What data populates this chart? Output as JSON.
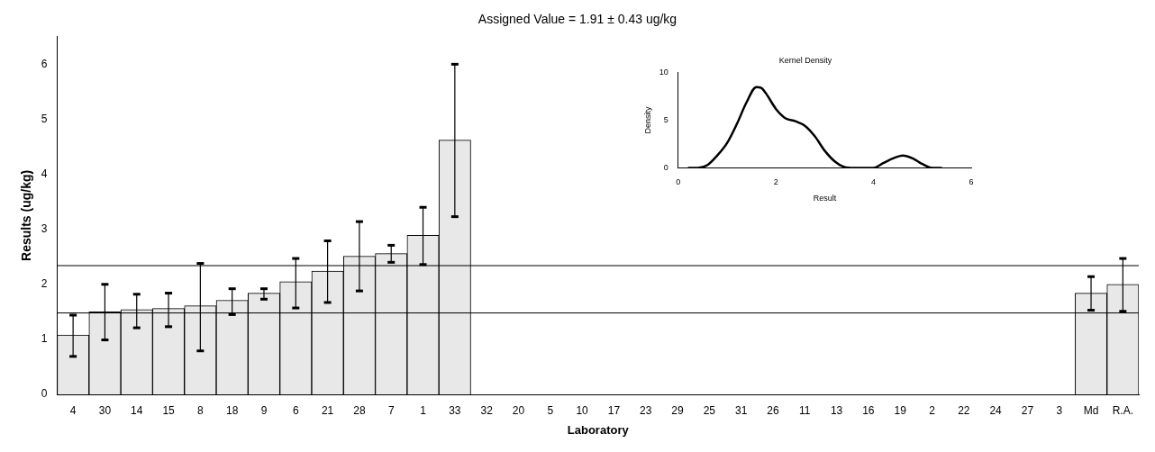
{
  "chart_data": [
    {
      "type": "bar",
      "title": "Assigned Value = 1.91 ± 0.43 ug/kg",
      "xlabel": "Laboratory",
      "ylabel": "Results (ug/kg)",
      "categories": [
        "4",
        "30",
        "14",
        "15",
        "8",
        "18",
        "9",
        "6",
        "21",
        "28",
        "7",
        "1",
        "33",
        "32",
        "20",
        "5",
        "10",
        "17",
        "23",
        "29",
        "25",
        "31",
        "26",
        "11",
        "13",
        "16",
        "19",
        "2",
        "22",
        "24",
        "27",
        "3",
        "Md",
        "R.A."
      ],
      "series": [
        {
          "color": "#e8e8e8",
          "values": [
            1.08,
            1.5,
            1.54,
            1.56,
            1.61,
            1.71,
            1.84,
            2.05,
            2.24,
            2.51,
            2.56,
            2.89,
            4.62,
            null,
            null,
            null,
            null,
            null,
            null,
            null,
            null,
            null,
            null,
            null,
            null,
            null,
            null,
            null,
            null,
            null,
            null,
            null,
            1.84,
            2.0
          ],
          "errors": [
            [
              0.69,
              1.44
            ],
            [
              0.99,
              2.0
            ],
            [
              1.21,
              1.82
            ],
            [
              1.23,
              1.84
            ],
            [
              0.79,
              2.38
            ],
            [
              1.45,
              1.92
            ],
            [
              1.73,
              1.92
            ],
            [
              1.57,
              2.47
            ],
            [
              1.67,
              2.79
            ],
            [
              1.88,
              3.14
            ],
            [
              2.4,
              2.71
            ],
            [
              2.36,
              3.4
            ],
            [
              3.23,
              6.0
            ],
            null,
            null,
            null,
            null,
            null,
            null,
            null,
            null,
            null,
            null,
            null,
            null,
            null,
            null,
            null,
            null,
            null,
            null,
            null,
            [
              1.53,
              2.14
            ],
            [
              1.51,
              2.47
            ]
          ]
        }
      ],
      "ylim": [
        0,
        6.5
      ],
      "yticks": [
        0,
        1,
        2,
        3,
        4,
        5,
        6
      ],
      "grid": false,
      "legend": false,
      "ref_lines": [
        {
          "axis": "y",
          "value": 2.34,
          "color": "#000000"
        },
        {
          "axis": "y",
          "value": 1.48,
          "color": "#000000"
        }
      ]
    },
    {
      "type": "line",
      "title": "Kernel Density",
      "xlabel": "Result",
      "ylabel": "Density",
      "series": [
        {
          "color": "#000000",
          "x": [
            0.2,
            0.4,
            0.6,
            0.8,
            1.0,
            1.2,
            1.4,
            1.6,
            1.7,
            1.8,
            2.0,
            2.2,
            2.4,
            2.6,
            2.8,
            3.0,
            3.2,
            3.4,
            3.6,
            3.8,
            4.0,
            4.2,
            4.4,
            4.6,
            4.8,
            5.0,
            5.2,
            5.4
          ],
          "values": [
            0,
            0,
            0.3,
            1.3,
            2.6,
            4.6,
            6.9,
            8.5,
            8.4,
            7.8,
            6.2,
            5.2,
            4.9,
            4.4,
            3.3,
            1.8,
            0.7,
            0.1,
            0,
            0,
            0,
            0.5,
            1.0,
            1.3,
            1.0,
            0.4,
            0,
            0
          ]
        }
      ],
      "xlim": [
        0,
        6
      ],
      "xticks": [
        0,
        2,
        4,
        6
      ],
      "ylim": [
        0,
        10
      ],
      "yticks": [
        0,
        5,
        10
      ],
      "grid": false,
      "legend": false,
      "marker": "none",
      "line_style": "solid"
    }
  ]
}
